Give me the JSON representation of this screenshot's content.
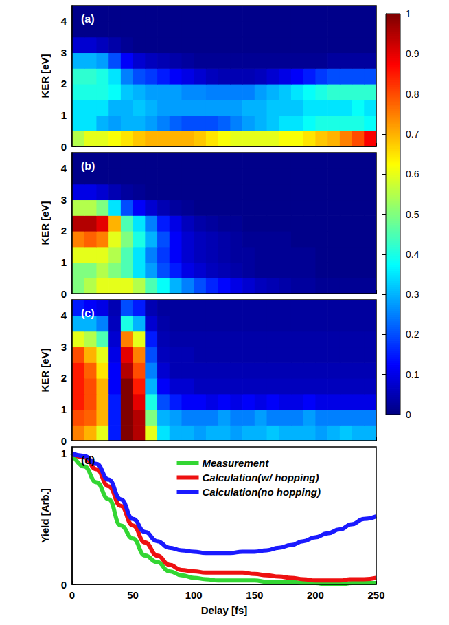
{
  "chart_data": [
    {
      "type": "heatmap",
      "title": "(a)",
      "ylabel": "KER [eV]",
      "x_bins": [
        0,
        10,
        20,
        30,
        40,
        50,
        60,
        70,
        80,
        90,
        100,
        110,
        120,
        130,
        140,
        150,
        160,
        170,
        180,
        190,
        200,
        210,
        220,
        230,
        240,
        250
      ],
      "y_bins": [
        0,
        0.5,
        1,
        1.5,
        2,
        2.5,
        3,
        3.5,
        4,
        4.5
      ],
      "z": [
        [
          0.55,
          0.6,
          0.6,
          0.62,
          0.65,
          0.68,
          0.7,
          0.7,
          0.7,
          0.7,
          0.68,
          0.65,
          0.62,
          0.6,
          0.6,
          0.6,
          0.6,
          0.62,
          0.62,
          0.65,
          0.68,
          0.7,
          0.75,
          0.8,
          0.88
        ],
        [
          0.35,
          0.35,
          0.3,
          0.28,
          0.3,
          0.3,
          0.28,
          0.25,
          0.22,
          0.2,
          0.2,
          0.2,
          0.22,
          0.25,
          0.28,
          0.3,
          0.32,
          0.35,
          0.35,
          0.38,
          0.4,
          0.4,
          0.4,
          0.4,
          0.38
        ],
        [
          0.35,
          0.35,
          0.35,
          0.3,
          0.3,
          0.32,
          0.3,
          0.28,
          0.28,
          0.28,
          0.28,
          0.28,
          0.28,
          0.28,
          0.3,
          0.3,
          0.32,
          0.32,
          0.32,
          0.35,
          0.35,
          0.35,
          0.35,
          0.38,
          0.35
        ],
        [
          0.4,
          0.4,
          0.4,
          0.38,
          0.32,
          0.3,
          0.28,
          0.28,
          0.28,
          0.26,
          0.26,
          0.25,
          0.25,
          0.25,
          0.25,
          0.28,
          0.3,
          0.32,
          0.35,
          0.38,
          0.4,
          0.42,
          0.42,
          0.42,
          0.42
        ],
        [
          0.42,
          0.42,
          0.4,
          0.35,
          0.25,
          0.2,
          0.18,
          0.15,
          0.12,
          0.1,
          0.08,
          0.06,
          0.05,
          0.05,
          0.05,
          0.06,
          0.08,
          0.1,
          0.12,
          0.15,
          0.18,
          0.2,
          0.2,
          0.2,
          0.2
        ],
        [
          0.3,
          0.3,
          0.28,
          0.2,
          0.12,
          0.08,
          0.06,
          0.05,
          0.04,
          0.03,
          0.02,
          0.02,
          0.02,
          0.02,
          0.02,
          0.02,
          0.02,
          0.02,
          0.02,
          0.02,
          0.02,
          0.03,
          0.03,
          0.03,
          0.03
        ],
        [
          0.08,
          0.08,
          0.06,
          0.04,
          0.02,
          0.01,
          0.01,
          0.01,
          0.01,
          0.01,
          0.01,
          0.01,
          0.01,
          0.01,
          0.01,
          0.01,
          0.01,
          0.01,
          0.01,
          0.01,
          0.01,
          0.01,
          0.01,
          0.01,
          0.01
        ],
        [
          0.01,
          0.01,
          0.01,
          0.01,
          0.01,
          0.01,
          0.01,
          0.01,
          0.01,
          0.01,
          0.01,
          0.01,
          0.01,
          0.01,
          0.01,
          0.01,
          0.01,
          0.01,
          0.01,
          0.01,
          0.01,
          0.01,
          0.01,
          0.01,
          0.01
        ],
        [
          0.01,
          0.01,
          0.01,
          0.01,
          0.01,
          0.01,
          0.01,
          0.01,
          0.01,
          0.01,
          0.01,
          0.01,
          0.01,
          0.01,
          0.01,
          0.01,
          0.01,
          0.01,
          0.01,
          0.01,
          0.01,
          0.01,
          0.01,
          0.01,
          0.01
        ]
      ],
      "xlim": [
        0,
        250
      ],
      "ylim": [
        0,
        4.5
      ],
      "xticks": [
        0,
        50,
        100,
        150,
        200,
        250
      ],
      "yticks": [
        0,
        1,
        2,
        3,
        4
      ],
      "tick_labels": "y",
      "colorbar_range": [
        0,
        1
      ],
      "colorbar_ticks": [
        0,
        0.1,
        0.2,
        0.3,
        0.4,
        0.5,
        0.6,
        0.7,
        0.8,
        0.9,
        1
      ]
    },
    {
      "type": "heatmap",
      "title": "(b)",
      "ylabel": "KER [eV]",
      "x_bins": [
        0,
        10,
        20,
        30,
        40,
        50,
        60,
        70,
        80,
        90,
        100,
        110,
        120,
        130,
        140,
        150,
        160,
        170,
        180,
        190,
        200,
        210,
        220,
        230,
        240,
        250
      ],
      "y_bins": [
        0,
        0.5,
        1,
        1.5,
        2,
        2.5,
        3,
        3.5,
        4,
        4.5
      ],
      "z": [
        [
          0.5,
          0.55,
          0.6,
          0.6,
          0.6,
          0.55,
          0.45,
          0.38,
          0.3,
          0.25,
          0.2,
          0.16,
          0.13,
          0.1,
          0.08,
          0.06,
          0.05,
          0.04,
          0.03,
          0.03,
          0.02,
          0.02,
          0.02,
          0.02,
          0.02
        ],
        [
          0.5,
          0.5,
          0.55,
          0.5,
          0.45,
          0.35,
          0.28,
          0.2,
          0.15,
          0.1,
          0.08,
          0.06,
          0.05,
          0.04,
          0.03,
          0.02,
          0.02,
          0.02,
          0.02,
          0.02,
          0.01,
          0.01,
          0.01,
          0.01,
          0.01
        ],
        [
          0.6,
          0.6,
          0.6,
          0.55,
          0.45,
          0.35,
          0.25,
          0.18,
          0.12,
          0.08,
          0.06,
          0.05,
          0.04,
          0.03,
          0.03,
          0.02,
          0.02,
          0.02,
          0.02,
          0.02,
          0.01,
          0.01,
          0.01,
          0.01,
          0.01
        ],
        [
          0.75,
          0.78,
          0.75,
          0.6,
          0.5,
          0.4,
          0.3,
          0.2,
          0.12,
          0.08,
          0.06,
          0.05,
          0.04,
          0.03,
          0.02,
          0.02,
          0.02,
          0.02,
          0.01,
          0.01,
          0.01,
          0.01,
          0.01,
          0.01,
          0.01
        ],
        [
          0.95,
          0.95,
          0.9,
          0.7,
          0.45,
          0.35,
          0.25,
          0.15,
          0.1,
          0.06,
          0.04,
          0.03,
          0.02,
          0.02,
          0.01,
          0.01,
          0.01,
          0.01,
          0.01,
          0.01,
          0.01,
          0.01,
          0.01,
          0.01,
          0.01
        ],
        [
          0.55,
          0.55,
          0.5,
          0.35,
          0.2,
          0.12,
          0.08,
          0.05,
          0.03,
          0.02,
          0.01,
          0.01,
          0.01,
          0.01,
          0.01,
          0.01,
          0.01,
          0.01,
          0.01,
          0.01,
          0.01,
          0.01,
          0.01,
          0.01,
          0.01
        ],
        [
          0.1,
          0.1,
          0.08,
          0.05,
          0.03,
          0.02,
          0.01,
          0.01,
          0.01,
          0.01,
          0.01,
          0.01,
          0.01,
          0.01,
          0.01,
          0.01,
          0.01,
          0.01,
          0.01,
          0.01,
          0.01,
          0.01,
          0.01,
          0.01,
          0.01
        ],
        [
          0.01,
          0.01,
          0.01,
          0.01,
          0.01,
          0.01,
          0.01,
          0.01,
          0.01,
          0.01,
          0.01,
          0.01,
          0.01,
          0.01,
          0.01,
          0.01,
          0.01,
          0.01,
          0.01,
          0.01,
          0.01,
          0.01,
          0.01,
          0.01,
          0.01
        ],
        [
          0.01,
          0.01,
          0.01,
          0.01,
          0.01,
          0.01,
          0.01,
          0.01,
          0.01,
          0.01,
          0.01,
          0.01,
          0.01,
          0.01,
          0.01,
          0.01,
          0.01,
          0.01,
          0.01,
          0.01,
          0.01,
          0.01,
          0.01,
          0.01,
          0.01
        ]
      ],
      "xlim": [
        0,
        250
      ],
      "ylim": [
        0,
        4.5
      ],
      "xticks": [
        0,
        50,
        100,
        150,
        200,
        250
      ],
      "yticks": [
        0,
        1,
        2,
        3,
        4
      ],
      "tick_labels": "y"
    },
    {
      "type": "heatmap",
      "title": "(c)",
      "ylabel": "KER [eV]",
      "x_bins": [
        0,
        10,
        20,
        30,
        40,
        50,
        60,
        70,
        80,
        90,
        100,
        110,
        120,
        130,
        140,
        150,
        160,
        170,
        180,
        190,
        200,
        210,
        220,
        230,
        240,
        250
      ],
      "y_bins": [
        0,
        0.5,
        1,
        1.5,
        2,
        2.5,
        3,
        3.5,
        4,
        4.5
      ],
      "z": [
        [
          0.75,
          0.7,
          0.6,
          0.15,
          1.0,
          0.95,
          0.6,
          0.35,
          0.3,
          0.3,
          0.28,
          0.3,
          0.3,
          0.28,
          0.3,
          0.3,
          0.32,
          0.3,
          0.3,
          0.3,
          0.28,
          0.3,
          0.32,
          0.3,
          0.3
        ],
        [
          0.8,
          0.78,
          0.7,
          0.15,
          1.0,
          0.95,
          0.5,
          0.3,
          0.28,
          0.25,
          0.25,
          0.25,
          0.28,
          0.25,
          0.25,
          0.28,
          0.25,
          0.25,
          0.25,
          0.28,
          0.25,
          0.25,
          0.25,
          0.25,
          0.25
        ],
        [
          0.85,
          0.8,
          0.7,
          0.15,
          1.0,
          0.9,
          0.4,
          0.2,
          0.15,
          0.12,
          0.12,
          0.1,
          0.12,
          0.1,
          0.12,
          0.1,
          0.12,
          0.1,
          0.1,
          0.12,
          0.1,
          0.1,
          0.1,
          0.1,
          0.1
        ],
        [
          0.85,
          0.8,
          0.7,
          0.12,
          1.0,
          0.85,
          0.3,
          0.12,
          0.08,
          0.08,
          0.06,
          0.06,
          0.06,
          0.06,
          0.06,
          0.06,
          0.06,
          0.06,
          0.06,
          0.06,
          0.06,
          0.06,
          0.06,
          0.06,
          0.06
        ],
        [
          0.85,
          0.78,
          0.65,
          0.12,
          0.95,
          0.8,
          0.25,
          0.08,
          0.05,
          0.05,
          0.05,
          0.05,
          0.05,
          0.05,
          0.05,
          0.05,
          0.05,
          0.05,
          0.05,
          0.05,
          0.05,
          0.05,
          0.05,
          0.05,
          0.05
        ],
        [
          0.8,
          0.7,
          0.6,
          0.1,
          0.9,
          0.75,
          0.2,
          0.06,
          0.05,
          0.05,
          0.04,
          0.04,
          0.04,
          0.04,
          0.04,
          0.04,
          0.04,
          0.04,
          0.04,
          0.04,
          0.04,
          0.04,
          0.04,
          0.04,
          0.04
        ],
        [
          0.6,
          0.55,
          0.45,
          0.08,
          0.75,
          0.6,
          0.15,
          0.05,
          0.04,
          0.04,
          0.04,
          0.04,
          0.04,
          0.04,
          0.04,
          0.04,
          0.04,
          0.04,
          0.04,
          0.04,
          0.04,
          0.04,
          0.04,
          0.04,
          0.04
        ],
        [
          0.3,
          0.3,
          0.25,
          0.06,
          0.4,
          0.3,
          0.08,
          0.04,
          0.03,
          0.03,
          0.03,
          0.03,
          0.03,
          0.03,
          0.03,
          0.03,
          0.03,
          0.03,
          0.03,
          0.03,
          0.03,
          0.03,
          0.03,
          0.03,
          0.03
        ],
        [
          0.15,
          0.12,
          0.1,
          0.05,
          0.2,
          0.15,
          0.05,
          0.03,
          0.03,
          0.03,
          0.03,
          0.03,
          0.03,
          0.03,
          0.03,
          0.03,
          0.03,
          0.03,
          0.03,
          0.03,
          0.03,
          0.03,
          0.03,
          0.03,
          0.03
        ]
      ],
      "xlim": [
        0,
        250
      ],
      "ylim": [
        0,
        4.5
      ],
      "xticks": [
        0,
        50,
        100,
        150,
        200,
        250
      ],
      "yticks": [
        0,
        1,
        2,
        3,
        4
      ],
      "tick_labels": "y"
    },
    {
      "type": "line",
      "title": "(d)",
      "xlabel": "Delay [fs]",
      "ylabel": "Yield [Arb.]",
      "x": [
        0,
        10,
        20,
        30,
        40,
        50,
        60,
        70,
        80,
        90,
        100,
        110,
        120,
        130,
        140,
        150,
        160,
        170,
        180,
        190,
        200,
        210,
        220,
        230,
        240,
        250
      ],
      "series": [
        {
          "name": "Measurement",
          "color": "#33d633",
          "values": [
            1.0,
            0.9,
            0.78,
            0.65,
            0.45,
            0.35,
            0.22,
            0.17,
            0.1,
            0.07,
            0.05,
            0.04,
            0.03,
            0.03,
            0.03,
            0.03,
            0.02,
            0.02,
            0.02,
            0.01,
            0.01,
            0.0,
            0.0,
            0.01,
            0.01,
            0.01
          ]
        },
        {
          "name": "Calculation(w/ hopping)",
          "color": "#ee1111",
          "values": [
            1.0,
            0.97,
            0.88,
            0.75,
            0.6,
            0.45,
            0.32,
            0.22,
            0.15,
            0.11,
            0.1,
            0.09,
            0.09,
            0.09,
            0.09,
            0.08,
            0.07,
            0.06,
            0.05,
            0.04,
            0.03,
            0.03,
            0.03,
            0.04,
            0.04,
            0.05
          ]
        },
        {
          "name": "Calculation(no hopping)",
          "color": "#1a1aff",
          "values": [
            1.0,
            0.98,
            0.92,
            0.8,
            0.65,
            0.5,
            0.4,
            0.33,
            0.28,
            0.26,
            0.25,
            0.24,
            0.24,
            0.24,
            0.25,
            0.25,
            0.26,
            0.28,
            0.3,
            0.33,
            0.36,
            0.39,
            0.42,
            0.46,
            0.5,
            0.52
          ]
        }
      ],
      "xlim": [
        0,
        250
      ],
      "ylim": [
        0,
        1.05
      ],
      "xticks": [
        0,
        50,
        100,
        150,
        200,
        250
      ],
      "yticks": [
        0,
        1
      ],
      "legend": "upper right"
    }
  ]
}
